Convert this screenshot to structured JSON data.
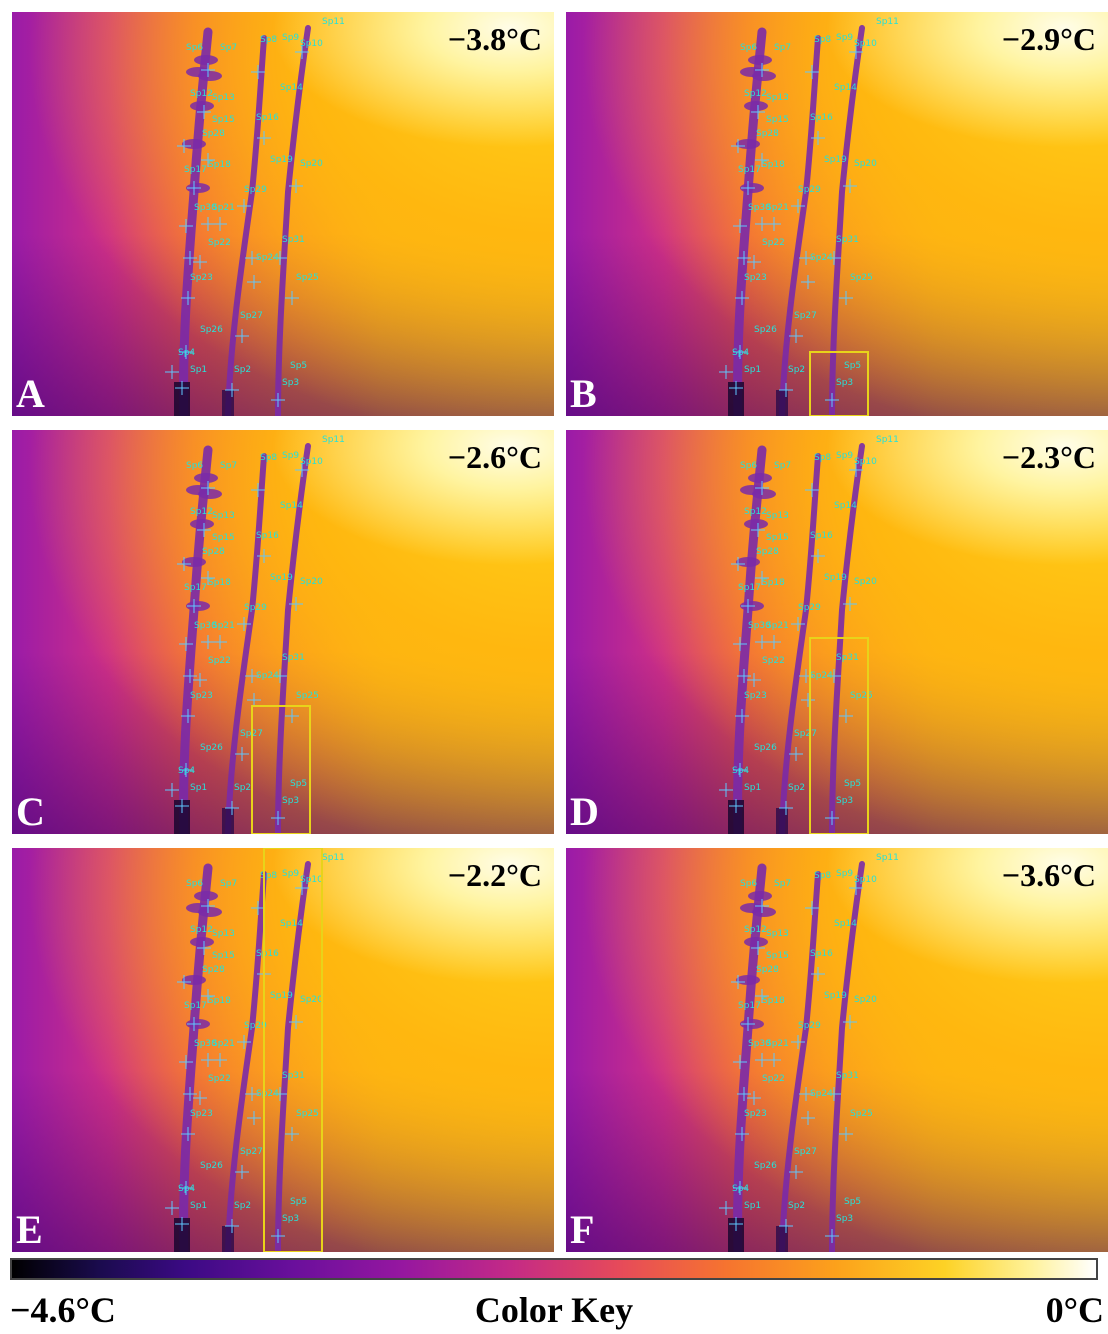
{
  "panels": [
    {
      "label": "A",
      "temperature": "−3.8°C",
      "highlight": "none"
    },
    {
      "label": "B",
      "temperature": "−2.9°C",
      "highlight": "base-of-right-stem"
    },
    {
      "label": "C",
      "temperature": "−2.6°C",
      "highlight": "lower-right-stem"
    },
    {
      "label": "D",
      "temperature": "−2.3°C",
      "highlight": "middle-right-stem"
    },
    {
      "label": "E",
      "temperature": "−2.2°C",
      "highlight": "entire-right-stem"
    },
    {
      "label": "F",
      "temperature": "−3.6°C",
      "highlight": "none"
    }
  ],
  "spot_labels": [
    "Sp1",
    "Sp2",
    "Sp3",
    "Sp4",
    "Sp5",
    "Sp6",
    "Sp7",
    "Sp8",
    "Sp9",
    "Sp10",
    "Sp11",
    "Sp12",
    "Sp13",
    "Sp14",
    "Sp15",
    "Sp16",
    "Sp17",
    "Sp18",
    "Sp19",
    "Sp20",
    "Sp21",
    "Sp22",
    "Sp23",
    "Sp24",
    "Sp25",
    "Sp26",
    "Sp27",
    "Sp28",
    "Sp29",
    "Sp30",
    "Sp31"
  ],
  "color_key": {
    "min_label": "−4.6°C",
    "title": "Color Key",
    "max_label": "0°C"
  },
  "colors": {
    "highlight_box": "#e8d31a",
    "spot_label": "#27e1d8",
    "marker": "#5fc8ff",
    "stem": "#7a2aa8"
  }
}
